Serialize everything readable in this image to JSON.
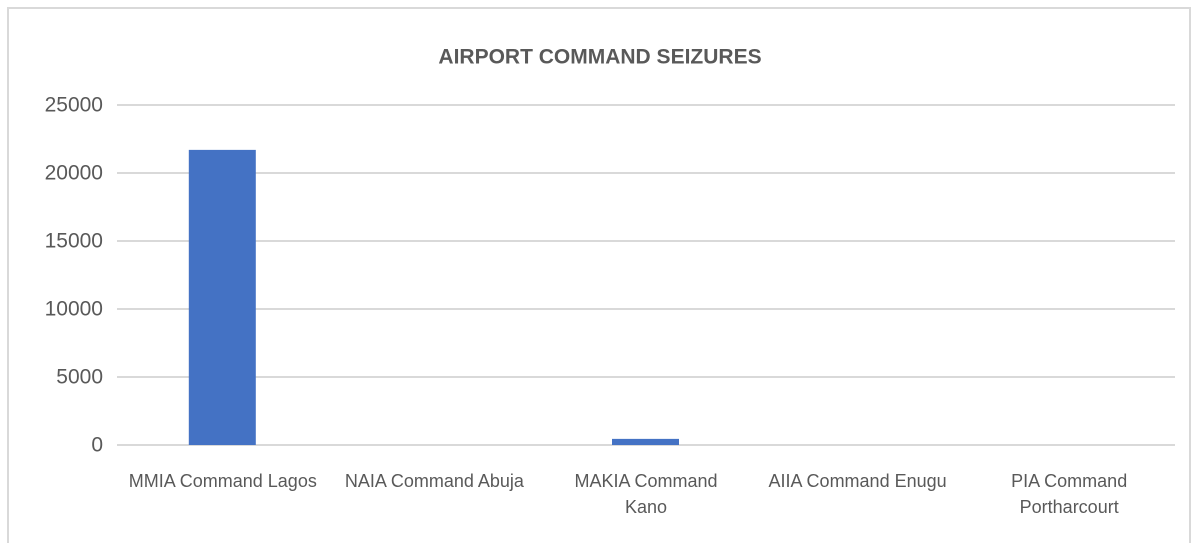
{
  "chart_data": {
    "type": "bar",
    "title": "AIRPORT COMMAND SEIZURES",
    "categories": [
      "MMIA Command Lagos",
      "NAIA Command Abuja",
      "MAKIA Command Kano",
      "AIIA Command Enugu",
      "PIA Command Portharcourt"
    ],
    "values": [
      21700,
      0,
      450,
      0,
      0
    ],
    "color": "#4472c4",
    "ylim": [
      0,
      25000
    ],
    "yticks": [
      0,
      5000,
      10000,
      15000,
      20000,
      25000
    ],
    "grid": true
  }
}
